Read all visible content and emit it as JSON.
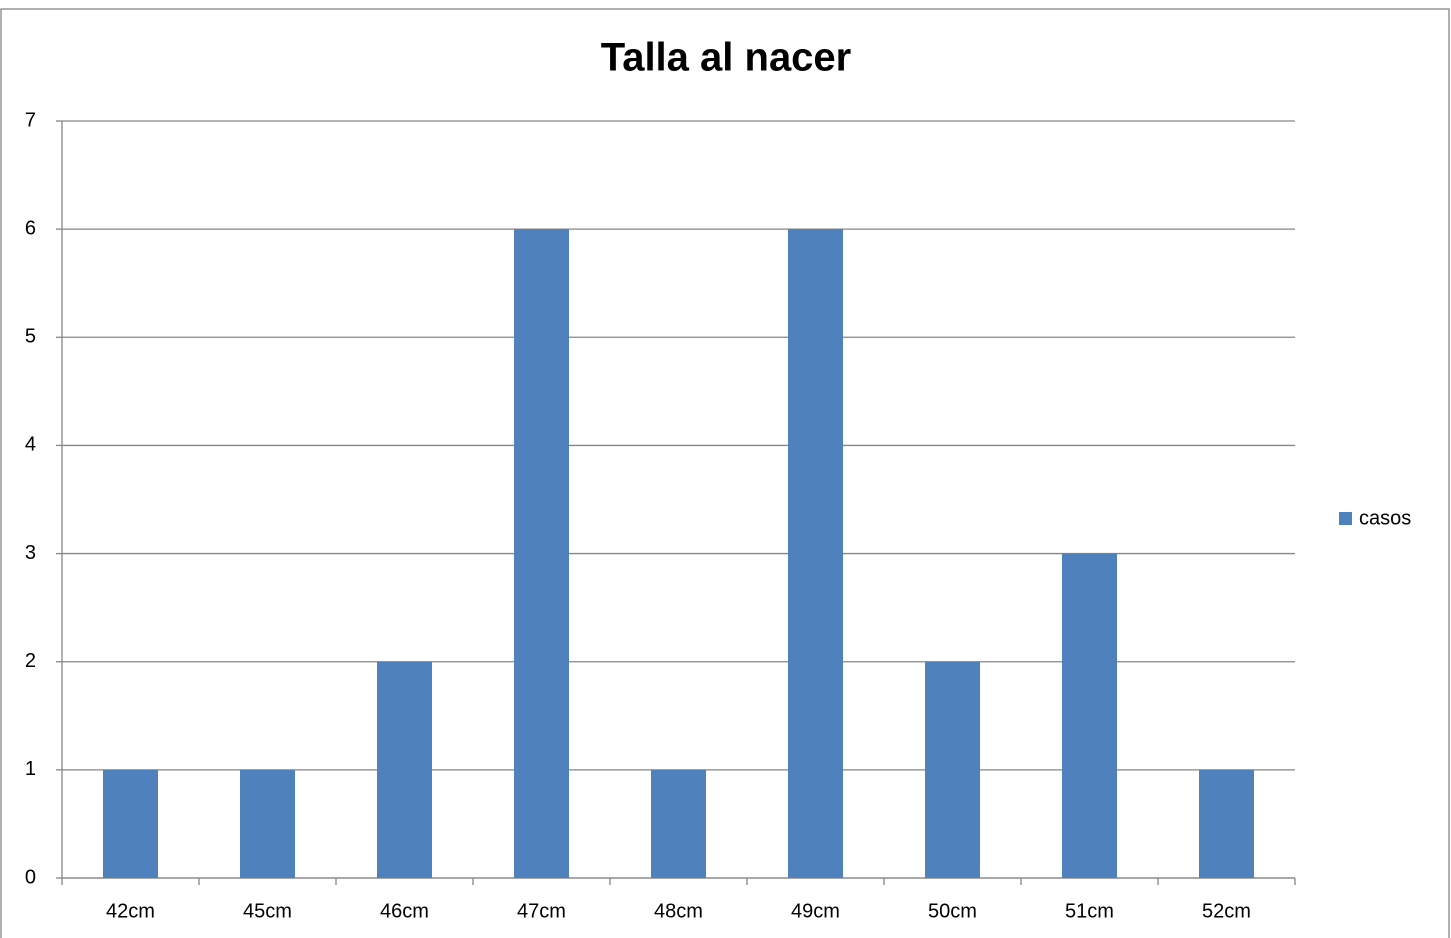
{
  "chart_data": {
    "type": "bar",
    "title": "Talla al nacer",
    "categories": [
      "42cm",
      "45cm",
      "46cm",
      "47cm",
      "48cm",
      "49cm",
      "50cm",
      "51cm",
      "52cm"
    ],
    "series": [
      {
        "name": "casos",
        "color": "#4f81bd",
        "values": [
          1,
          1,
          2,
          6,
          1,
          6,
          2,
          3,
          1
        ]
      }
    ],
    "ylim": [
      0,
      7
    ],
    "yticks": [
      0,
      1,
      2,
      3,
      4,
      5,
      6,
      7
    ],
    "grid": true,
    "legend": "right"
  }
}
